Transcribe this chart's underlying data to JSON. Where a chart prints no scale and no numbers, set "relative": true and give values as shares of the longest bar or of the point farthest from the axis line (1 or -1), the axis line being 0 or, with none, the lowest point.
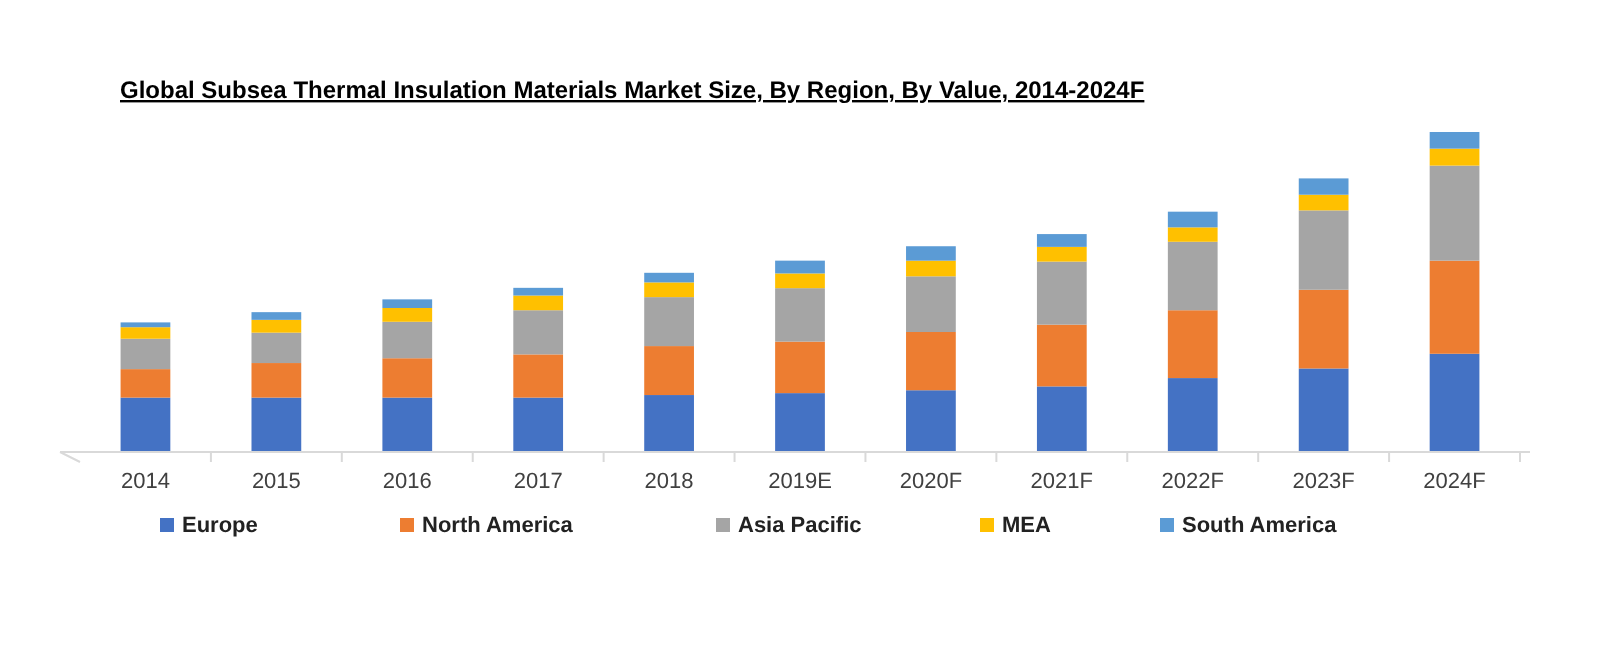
{
  "chart_data": {
    "type": "bar",
    "title": "Global Subsea Thermal Insulation Materials Market Size, By Region, By Value, 2014-2024F",
    "categories": [
      "2014",
      "2015",
      "2016",
      "2017",
      "2018",
      "2019E",
      "2020F",
      "2021F",
      "2022F",
      "2023F",
      "2024F"
    ],
    "stacked": true,
    "relative": true,
    "legend": "bottom",
    "series": [
      {
        "name": "Europe",
        "color": "#4472c4",
        "values": [
          0.17,
          0.17,
          0.17,
          0.17,
          0.178,
          0.184,
          0.193,
          0.205,
          0.231,
          0.261,
          0.307
        ]
      },
      {
        "name": "North America",
        "color": "#ed7d31",
        "values": [
          0.089,
          0.108,
          0.123,
          0.135,
          0.153,
          0.161,
          0.182,
          0.193,
          0.212,
          0.246,
          0.291
        ]
      },
      {
        "name": "Asia Pacific",
        "color": "#a5a5a5",
        "values": [
          0.095,
          0.095,
          0.114,
          0.138,
          0.153,
          0.167,
          0.174,
          0.197,
          0.214,
          0.248,
          0.297
        ]
      },
      {
        "name": "MEA",
        "color": "#ffc000",
        "values": [
          0.036,
          0.04,
          0.043,
          0.046,
          0.046,
          0.046,
          0.049,
          0.046,
          0.045,
          0.049,
          0.053
        ]
      },
      {
        "name": "South America",
        "color": "#5b9bd5",
        "values": [
          0.015,
          0.024,
          0.027,
          0.024,
          0.03,
          0.04,
          0.045,
          0.04,
          0.049,
          0.051,
          0.052
        ]
      }
    ]
  }
}
